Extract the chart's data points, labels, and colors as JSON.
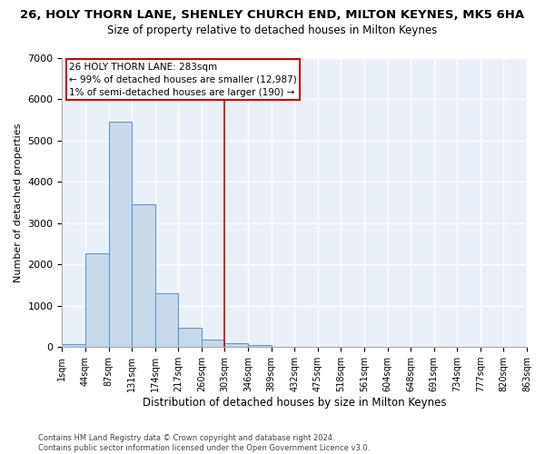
{
  "title": "26, HOLY THORN LANE, SHENLEY CHURCH END, MILTON KEYNES, MK5 6HA",
  "subtitle": "Size of property relative to detached houses in Milton Keynes",
  "xlabel": "Distribution of detached houses by size in Milton Keynes",
  "ylabel": "Number of detached properties",
  "footnote": "Contains HM Land Registry data © Crown copyright and database right 2024.\nContains public sector information licensed under the Open Government Licence v3.0.",
  "bin_labels": [
    "1sqm",
    "44sqm",
    "87sqm",
    "131sqm",
    "174sqm",
    "217sqm",
    "260sqm",
    "303sqm",
    "346sqm",
    "389sqm",
    "432sqm",
    "475sqm",
    "518sqm",
    "561sqm",
    "604sqm",
    "648sqm",
    "691sqm",
    "734sqm",
    "777sqm",
    "820sqm",
    "863sqm"
  ],
  "bar_heights": [
    80,
    2280,
    5450,
    3450,
    1310,
    470,
    175,
    90,
    45,
    0,
    0,
    0,
    0,
    0,
    0,
    0,
    0,
    0,
    0,
    0
  ],
  "bar_color": "#c8d8e8",
  "bar_edge_color": "#5b9bd5",
  "bar_edge_width": 0.8,
  "vline_color": "#cc0000",
  "annotation_text": "26 HOLY THORN LANE: 283sqm\n← 99% of detached houses are smaller (12,987)\n1% of semi-detached houses are larger (190) →",
  "annotation_box_color": "#cc0000",
  "ylim": [
    0,
    7000
  ],
  "background_color": "#eaf0f8",
  "grid_color": "#ffffff",
  "title_fontsize": 9.5,
  "subtitle_fontsize": 8.5,
  "ylabel_fontsize": 8,
  "xlabel_fontsize": 8.5,
  "tick_fontsize": 7,
  "annot_fontsize": 7.5,
  "footnote_fontsize": 6
}
